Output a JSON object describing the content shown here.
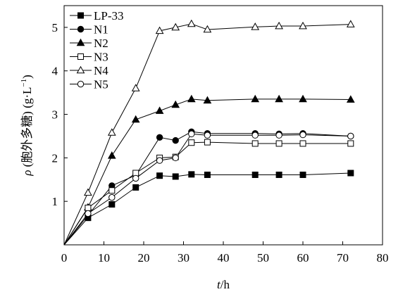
{
  "chart_data": {
    "type": "line",
    "xlabel_var": "t",
    "xlabel_unit": "/h",
    "ylabel_var": "ρ",
    "ylabel_text": " (胞外多糖) (g·L",
    "ylabel_sup": "−1",
    "ylabel_close": ")",
    "xlim": [
      0,
      80
    ],
    "ylim": [
      0,
      5.5
    ],
    "xticks": [
      "0",
      "10",
      "20",
      "30",
      "40",
      "50",
      "60",
      "70",
      "80"
    ],
    "yticks": [
      "1",
      "2",
      "3",
      "4",
      "5"
    ],
    "grid": false,
    "legend_position": "top-left",
    "x": [
      0,
      6,
      12,
      18,
      24,
      28,
      32,
      36,
      48,
      54,
      60,
      72
    ],
    "series": [
      {
        "name": "LP-33",
        "marker": "filled-square",
        "values": [
          0,
          0.62,
          0.93,
          1.32,
          1.59,
          1.57,
          1.62,
          1.61,
          1.61,
          1.61,
          1.61,
          1.65
        ]
      },
      {
        "name": "N1",
        "marker": "filled-circle",
        "values": [
          0,
          0.68,
          1.36,
          1.6,
          2.47,
          2.4,
          2.6,
          2.56,
          2.56,
          2.55,
          2.56,
          2.5
        ]
      },
      {
        "name": "N2",
        "marker": "filled-triangle",
        "values": [
          0,
          0.86,
          2.05,
          2.88,
          3.08,
          3.22,
          3.35,
          3.32,
          3.35,
          3.35,
          3.35,
          3.34
        ]
      },
      {
        "name": "N3",
        "marker": "open-square",
        "values": [
          0,
          0.85,
          1.25,
          1.65,
          2.0,
          2.02,
          2.35,
          2.36,
          2.33,
          2.33,
          2.33,
          2.33
        ]
      },
      {
        "name": "N4",
        "marker": "open-triangle",
        "values": [
          0,
          1.2,
          2.58,
          3.6,
          4.92,
          5.0,
          5.08,
          4.95,
          5.01,
          5.03,
          5.03,
          5.07
        ]
      },
      {
        "name": "N5",
        "marker": "open-circle",
        "values": [
          0,
          0.72,
          1.09,
          1.53,
          1.94,
          2.0,
          2.55,
          2.52,
          2.52,
          2.52,
          2.53,
          2.5
        ]
      }
    ]
  }
}
